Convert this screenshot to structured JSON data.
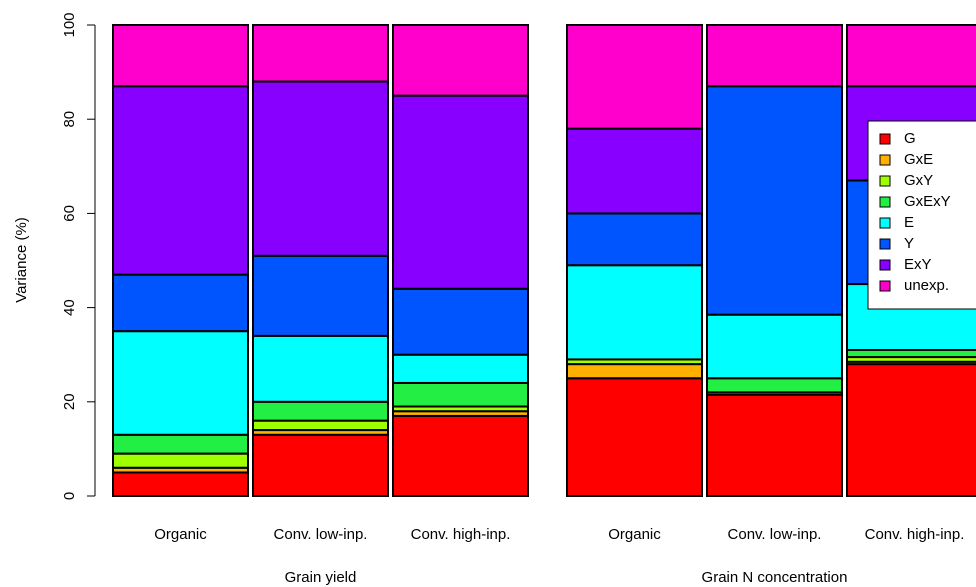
{
  "chart_data": [
    {
      "type": "bar",
      "stacked": true,
      "ylabel": "Variance (%)",
      "xlabel": "Grain yield",
      "categories": [
        "Organic",
        "Conv. low-inp.",
        "Conv. high-inp."
      ],
      "ylim": [
        0,
        100
      ],
      "yticks": [
        0,
        20,
        40,
        60,
        80,
        100
      ],
      "series": [
        {
          "name": "G",
          "color": "#ff0000",
          "values": [
            5,
            13,
            17
          ]
        },
        {
          "name": "GxE",
          "color": "#ffb000",
          "values": [
            1,
            1,
            1
          ]
        },
        {
          "name": "GxY",
          "color": "#a0ff00",
          "values": [
            3,
            2,
            1
          ]
        },
        {
          "name": "GxExY",
          "color": "#22ee44",
          "values": [
            4,
            4,
            5
          ]
        },
        {
          "name": "E",
          "color": "#00ffff",
          "values": [
            22,
            14,
            6
          ]
        },
        {
          "name": "Y",
          "color": "#0055ff",
          "values": [
            12,
            17,
            14
          ]
        },
        {
          "name": "ExY",
          "color": "#8800ff",
          "values": [
            40,
            37,
            41
          ]
        },
        {
          "name": "unexp.",
          "color": "#ff00cc",
          "values": [
            13,
            12,
            15
          ]
        }
      ]
    },
    {
      "type": "bar",
      "stacked": true,
      "xlabel": "Grain N concentration",
      "categories": [
        "Organic",
        "Conv. low-inp.",
        "Conv. high-inp."
      ],
      "ylim": [
        0,
        100
      ],
      "legend": "upper right",
      "series": [
        {
          "name": "G",
          "color": "#ff0000",
          "values": [
            25,
            21.5,
            28
          ]
        },
        {
          "name": "GxE",
          "color": "#ffb000",
          "values": [
            3,
            0,
            0.5
          ]
        },
        {
          "name": "GxY",
          "color": "#a0ff00",
          "values": [
            1,
            0.5,
            1
          ]
        },
        {
          "name": "GxExY",
          "color": "#22ee44",
          "values": [
            0,
            3,
            1.5
          ]
        },
        {
          "name": "E",
          "color": "#00ffff",
          "values": [
            20,
            13.5,
            14
          ]
        },
        {
          "name": "Y",
          "color": "#0055ff",
          "values": [
            11,
            48.5,
            22
          ]
        },
        {
          "name": "ExY",
          "color": "#8800ff",
          "values": [
            18,
            0,
            20
          ]
        },
        {
          "name": "unexp.",
          "color": "#ff00cc",
          "values": [
            22,
            13,
            13
          ]
        }
      ]
    }
  ]
}
